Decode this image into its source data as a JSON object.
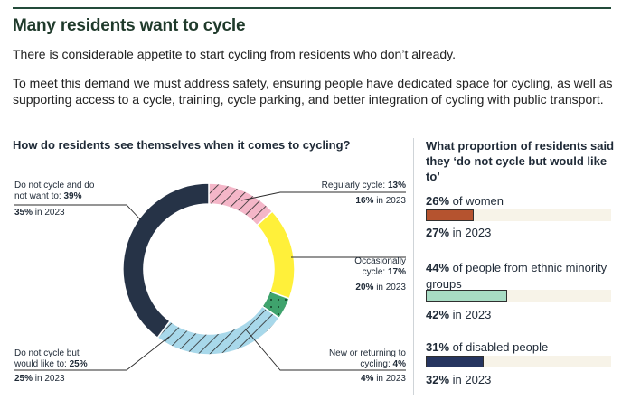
{
  "header": {
    "title": "Many residents want to cycle",
    "intro": "There is considerable appetite to start cycling from residents who don’t already.",
    "body": "To meet this demand we must address safety, ensuring people have dedicated space for cycling, as well as supporting access to a cycle, training, cycle parking, and better integration of cycling with public transport."
  },
  "donut": {
    "question": "How do residents see themselves when it comes to cycling?",
    "segments": [
      {
        "label": "Regularly cycle:",
        "value": "13%",
        "value_num": 13,
        "year_value": "16%",
        "year_text": "in 2023",
        "color": "#f4b6c8",
        "pattern": "hatch-pink"
      },
      {
        "label": "Occasionally cycle:",
        "value": "17%",
        "value_num": 17,
        "year_value": "20%",
        "year_text": "in 2023",
        "color": "#fff03a",
        "pattern": "none"
      },
      {
        "label": "New or returning to cycling:",
        "value": "4%",
        "value_num": 4,
        "year_value": "4%",
        "year_text": "in 2023",
        "color": "#3fa36d",
        "pattern": "dots"
      },
      {
        "label": "Do not cycle but would like to:",
        "value": "25%",
        "value_num": 25,
        "year_value": "25%",
        "year_text": "in 2023",
        "color": "#a8d8ea",
        "pattern": "hatch-blue"
      },
      {
        "label": "Do not cycle and do not want to:",
        "value": "39%",
        "value_num": 39,
        "year_value": "35%",
        "year_text": "in 2023",
        "color": "#263347",
        "pattern": "none"
      }
    ]
  },
  "proportion": {
    "question": "What proportion of residents said they ‘do not cycle but would like to’",
    "items": [
      {
        "value": "26%",
        "value_num": 26,
        "label": "of women",
        "year_value": "27%",
        "year_text": "in 2023",
        "color": "#b5532f"
      },
      {
        "value": "44%",
        "value_num": 44,
        "label": "of people from ethnic minority groups",
        "year_value": "42%",
        "year_text": "in 2023",
        "color": "#a8dcc4"
      },
      {
        "value": "31%",
        "value_num": 31,
        "label": "of disabled people",
        "year_value": "32%",
        "year_text": "in 2023",
        "color": "#263560"
      }
    ]
  }
}
